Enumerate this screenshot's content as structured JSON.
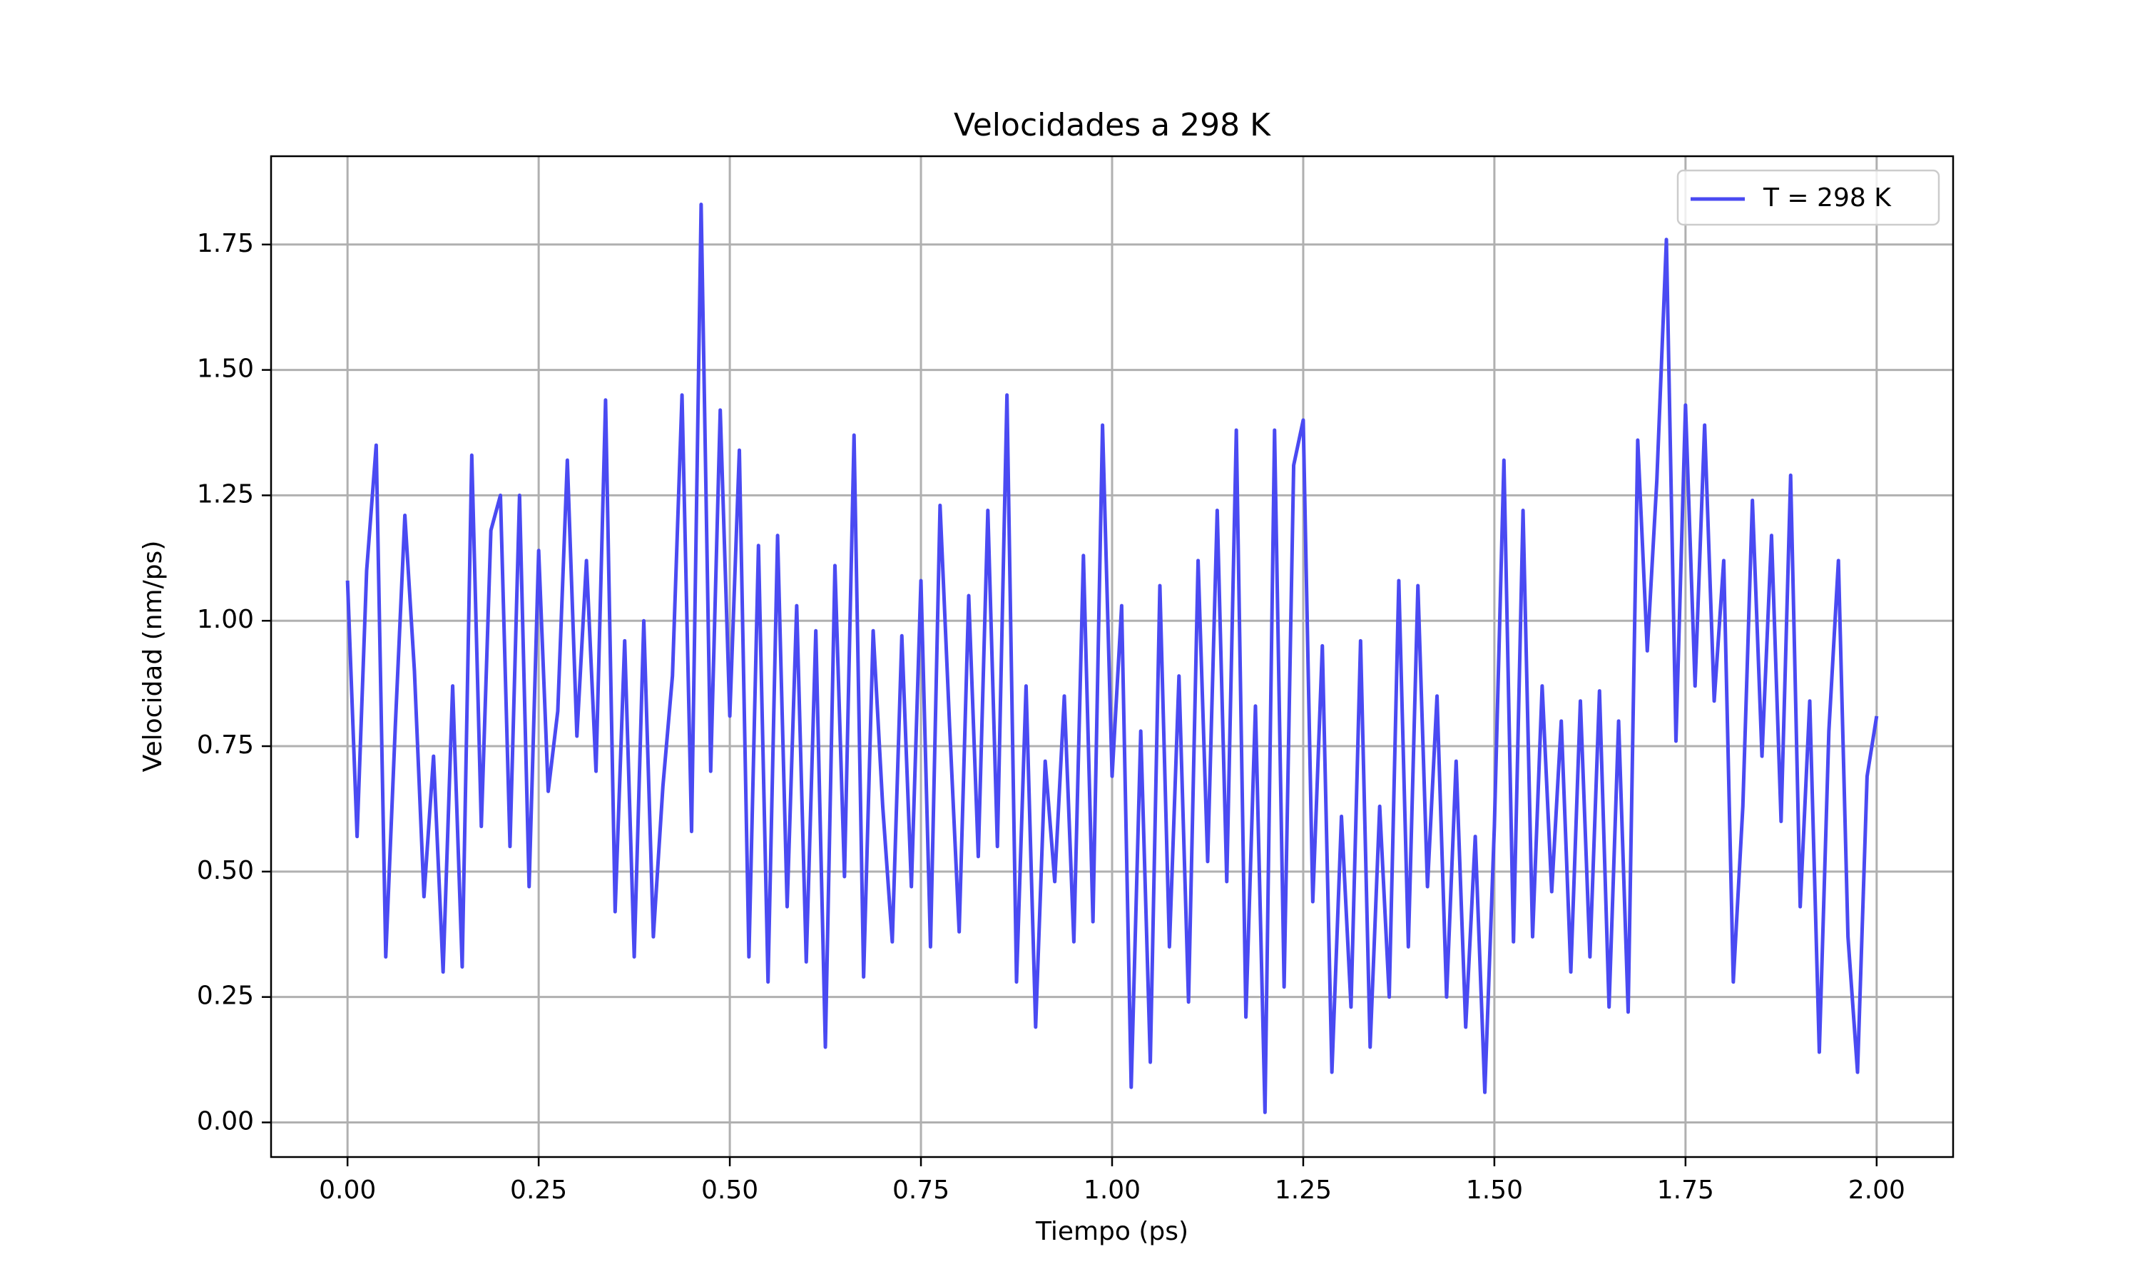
{
  "chart_data": {
    "type": "line",
    "title": "Velocidades a 298 K",
    "xlabel": "Tiempo (ps)",
    "ylabel": "Velocidad (nm/ps)",
    "x": [
      0,
      0.0125,
      0.025,
      0.0375,
      0.05,
      0.0625,
      0.075,
      0.0875,
      0.1,
      0.1125,
      0.125,
      0.1375,
      0.15,
      0.1625,
      0.175,
      0.1875,
      0.2,
      0.2125,
      0.225,
      0.2375,
      0.25,
      0.2625,
      0.275,
      0.2875,
      0.3,
      0.3125,
      0.325,
      0.3375,
      0.35,
      0.3625,
      0.375,
      0.3875,
      0.4,
      0.4125,
      0.425,
      0.4375,
      0.45,
      0.4625,
      0.475,
      0.4875,
      0.5,
      0.5125,
      0.525,
      0.5375,
      0.55,
      0.5625,
      0.575,
      0.5875,
      0.6,
      0.6125,
      0.625,
      0.6375,
      0.65,
      0.6625,
      0.675,
      0.6875,
      0.7,
      0.7125,
      0.725,
      0.7375,
      0.75,
      0.7625,
      0.775,
      0.7875,
      0.8,
      0.8125,
      0.825,
      0.8375,
      0.85,
      0.8625,
      0.875,
      0.8875,
      0.9,
      0.9125,
      0.925,
      0.9375,
      0.95,
      0.9625,
      0.975,
      0.9875,
      1,
      1.0125,
      1.025,
      1.0375,
      1.05,
      1.0625,
      1.075,
      1.0875,
      1.1,
      1.1125,
      1.125,
      1.1375,
      1.15,
      1.1625,
      1.175,
      1.1875,
      1.2,
      1.2125,
      1.225,
      1.2375,
      1.25,
      1.2625,
      1.275,
      1.2875,
      1.3,
      1.3125,
      1.325,
      1.3375,
      1.35,
      1.3625,
      1.375,
      1.3875,
      1.4,
      1.4125,
      1.425,
      1.4375,
      1.45,
      1.4625,
      1.475,
      1.4875,
      1.5,
      1.5125,
      1.525,
      1.5375,
      1.55,
      1.5625,
      1.575,
      1.5875,
      1.6,
      1.6125,
      1.625,
      1.6375,
      1.65,
      1.6625,
      1.675,
      1.6875,
      1.7,
      1.7125,
      1.725,
      1.7375,
      1.75,
      1.7625,
      1.775,
      1.7875,
      1.8,
      1.8125,
      1.825,
      1.8375,
      1.85,
      1.8625,
      1.875,
      1.8875,
      1.9,
      1.9125,
      1.925,
      1.9375,
      1.95,
      1.9625,
      1.975,
      1.9875,
      2
    ],
    "series": [
      {
        "name": "T = 298 K",
        "color": "#4a4af2",
        "values": [
          1.08,
          0.57,
          1.1,
          1.35,
          0.33,
          0.79,
          1.21,
          0.9,
          0.45,
          0.73,
          0.3,
          0.87,
          0.31,
          1.33,
          0.59,
          1.18,
          1.25,
          0.55,
          1.25,
          0.47,
          1.14,
          0.66,
          0.82,
          1.32,
          0.77,
          1.12,
          0.7,
          1.44,
          0.42,
          0.96,
          0.33,
          1.0,
          0.37,
          0.67,
          0.89,
          1.45,
          0.58,
          1.83,
          0.7,
          1.42,
          0.81,
          1.34,
          0.33,
          1.15,
          0.28,
          1.17,
          0.43,
          1.03,
          0.32,
          0.98,
          0.15,
          1.11,
          0.49,
          1.37,
          0.29,
          0.98,
          0.63,
          0.36,
          0.97,
          0.47,
          1.08,
          0.35,
          1.23,
          0.79,
          0.38,
          1.05,
          0.53,
          1.22,
          0.55,
          1.45,
          0.28,
          0.87,
          0.19,
          0.72,
          0.48,
          0.85,
          0.36,
          1.13,
          0.4,
          1.39,
          0.69,
          1.03,
          0.07,
          0.78,
          0.12,
          1.07,
          0.35,
          0.89,
          0.24,
          1.12,
          0.52,
          1.22,
          0.48,
          1.38,
          0.21,
          0.83,
          0.02,
          1.38,
          0.27,
          1.31,
          1.4,
          0.44,
          0.95,
          0.1,
          0.61,
          0.23,
          0.96,
          0.15,
          0.63,
          0.25,
          1.08,
          0.35,
          1.07,
          0.47,
          0.85,
          0.25,
          0.72,
          0.19,
          0.57,
          0.06,
          0.59,
          1.32,
          0.36,
          1.22,
          0.37,
          0.87,
          0.46,
          0.8,
          0.3,
          0.84,
          0.33,
          0.86,
          0.23,
          0.8,
          0.22,
          1.36,
          0.94,
          1.28,
          1.76,
          0.76,
          1.43,
          0.87,
          1.39,
          0.84,
          1.12,
          0.28,
          0.63,
          1.24,
          0.73,
          1.17,
          0.6,
          1.29,
          0.43,
          0.84,
          0.14,
          0.78,
          1.12,
          0.37,
          0.1,
          0.69,
          0.81
        ]
      }
    ],
    "xlim": [
      -0.1,
      2.1
    ],
    "ylim": [
      -0.069,
      1.926
    ],
    "xticks": [
      {
        "value": 0,
        "label": "0.00"
      },
      {
        "value": 0.25,
        "label": "0.25"
      },
      {
        "value": 0.5,
        "label": "0.50"
      },
      {
        "value": 0.75,
        "label": "0.75"
      },
      {
        "value": 1,
        "label": "1.00"
      },
      {
        "value": 1.25,
        "label": "1.25"
      },
      {
        "value": 1.5,
        "label": "1.50"
      },
      {
        "value": 1.75,
        "label": "1.75"
      },
      {
        "value": 2,
        "label": "2.00"
      }
    ],
    "yticks": [
      {
        "value": 0,
        "label": "0.00"
      },
      {
        "value": 0.25,
        "label": "0.25"
      },
      {
        "value": 0.5,
        "label": "0.50"
      },
      {
        "value": 0.75,
        "label": "0.75"
      },
      {
        "value": 1,
        "label": "1.00"
      },
      {
        "value": 1.25,
        "label": "1.25"
      },
      {
        "value": 1.5,
        "label": "1.50"
      },
      {
        "value": 1.75,
        "label": "1.75"
      }
    ],
    "grid": true,
    "legend": "upper right"
  }
}
